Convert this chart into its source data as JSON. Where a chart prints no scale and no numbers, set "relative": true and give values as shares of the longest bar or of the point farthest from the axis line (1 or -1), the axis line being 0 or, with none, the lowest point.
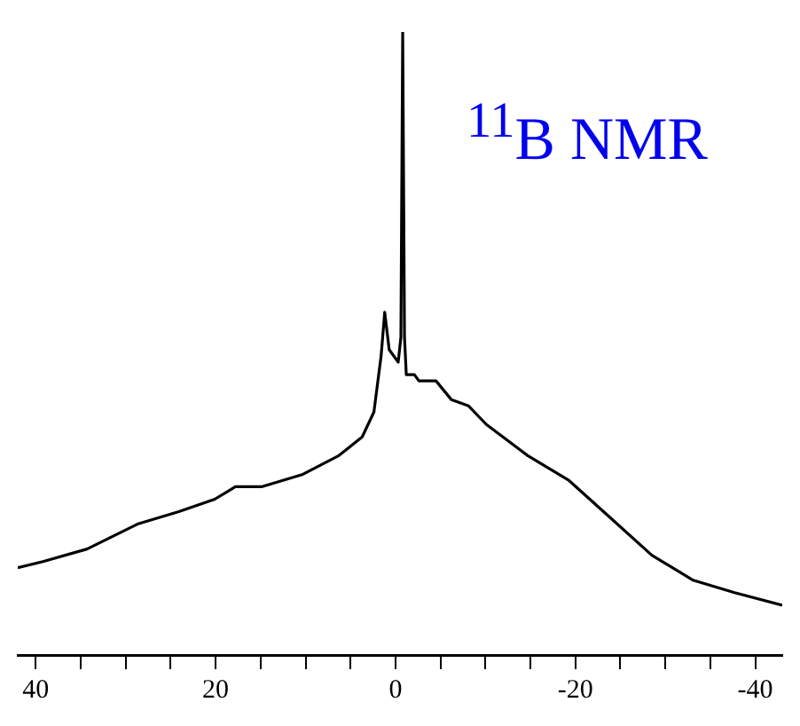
{
  "chart_data": {
    "type": "line",
    "relative": true,
    "annotations": [
      "$^{11}$B NMR"
    ],
    "x": [
      42,
      39.2,
      34.3,
      28.7,
      24.1,
      20.1,
      17.8,
      14.9,
      10.3,
      6.3,
      3.7,
      2.4,
      1.6,
      1.2,
      0.7,
      -0.3,
      -0.6,
      -0.8,
      -1.0,
      -1.2,
      -2.1,
      -2.6,
      -4.5,
      -6.2,
      -8.1,
      -10.1,
      -14.7,
      -19.3,
      -23.9,
      -28.5,
      -33.1,
      -37.7,
      -43
    ],
    "series": [
      {
        "color": "#000000",
        "values": [
          0.14,
          0.15,
          0.17,
          0.21,
          0.23,
          0.25,
          0.27,
          0.27,
          0.29,
          0.32,
          0.35,
          0.39,
          0.48,
          0.55,
          0.49,
          0.47,
          0.51,
          1,
          0.51,
          0.45,
          0.45,
          0.44,
          0.44,
          0.41,
          0.4,
          0.37,
          0.32,
          0.28,
          0.22,
          0.16,
          0.12,
          0.1,
          0.08
        ]
      }
    ],
    "xlim": [
      42,
      -43
    ],
    "xticks": [
      40,
      {
        "value": 35,
        "label": null
      },
      {
        "value": 30,
        "label": null
      },
      {
        "value": 25,
        "label": null
      },
      20,
      {
        "value": 15,
        "label": null
      },
      {
        "value": 10,
        "label": null
      },
      {
        "value": 5,
        "label": null
      },
      0,
      {
        "value": -5,
        "label": null
      },
      {
        "value": -10,
        "label": null
      },
      {
        "value": -15,
        "label": null
      },
      -20,
      {
        "value": -25,
        "label": null
      },
      {
        "value": -30,
        "label": null
      },
      {
        "value": -35,
        "label": null
      },
      -40
    ],
    "grid": false,
    "legend": false,
    "marker": "none",
    "line_style": "solid"
  }
}
